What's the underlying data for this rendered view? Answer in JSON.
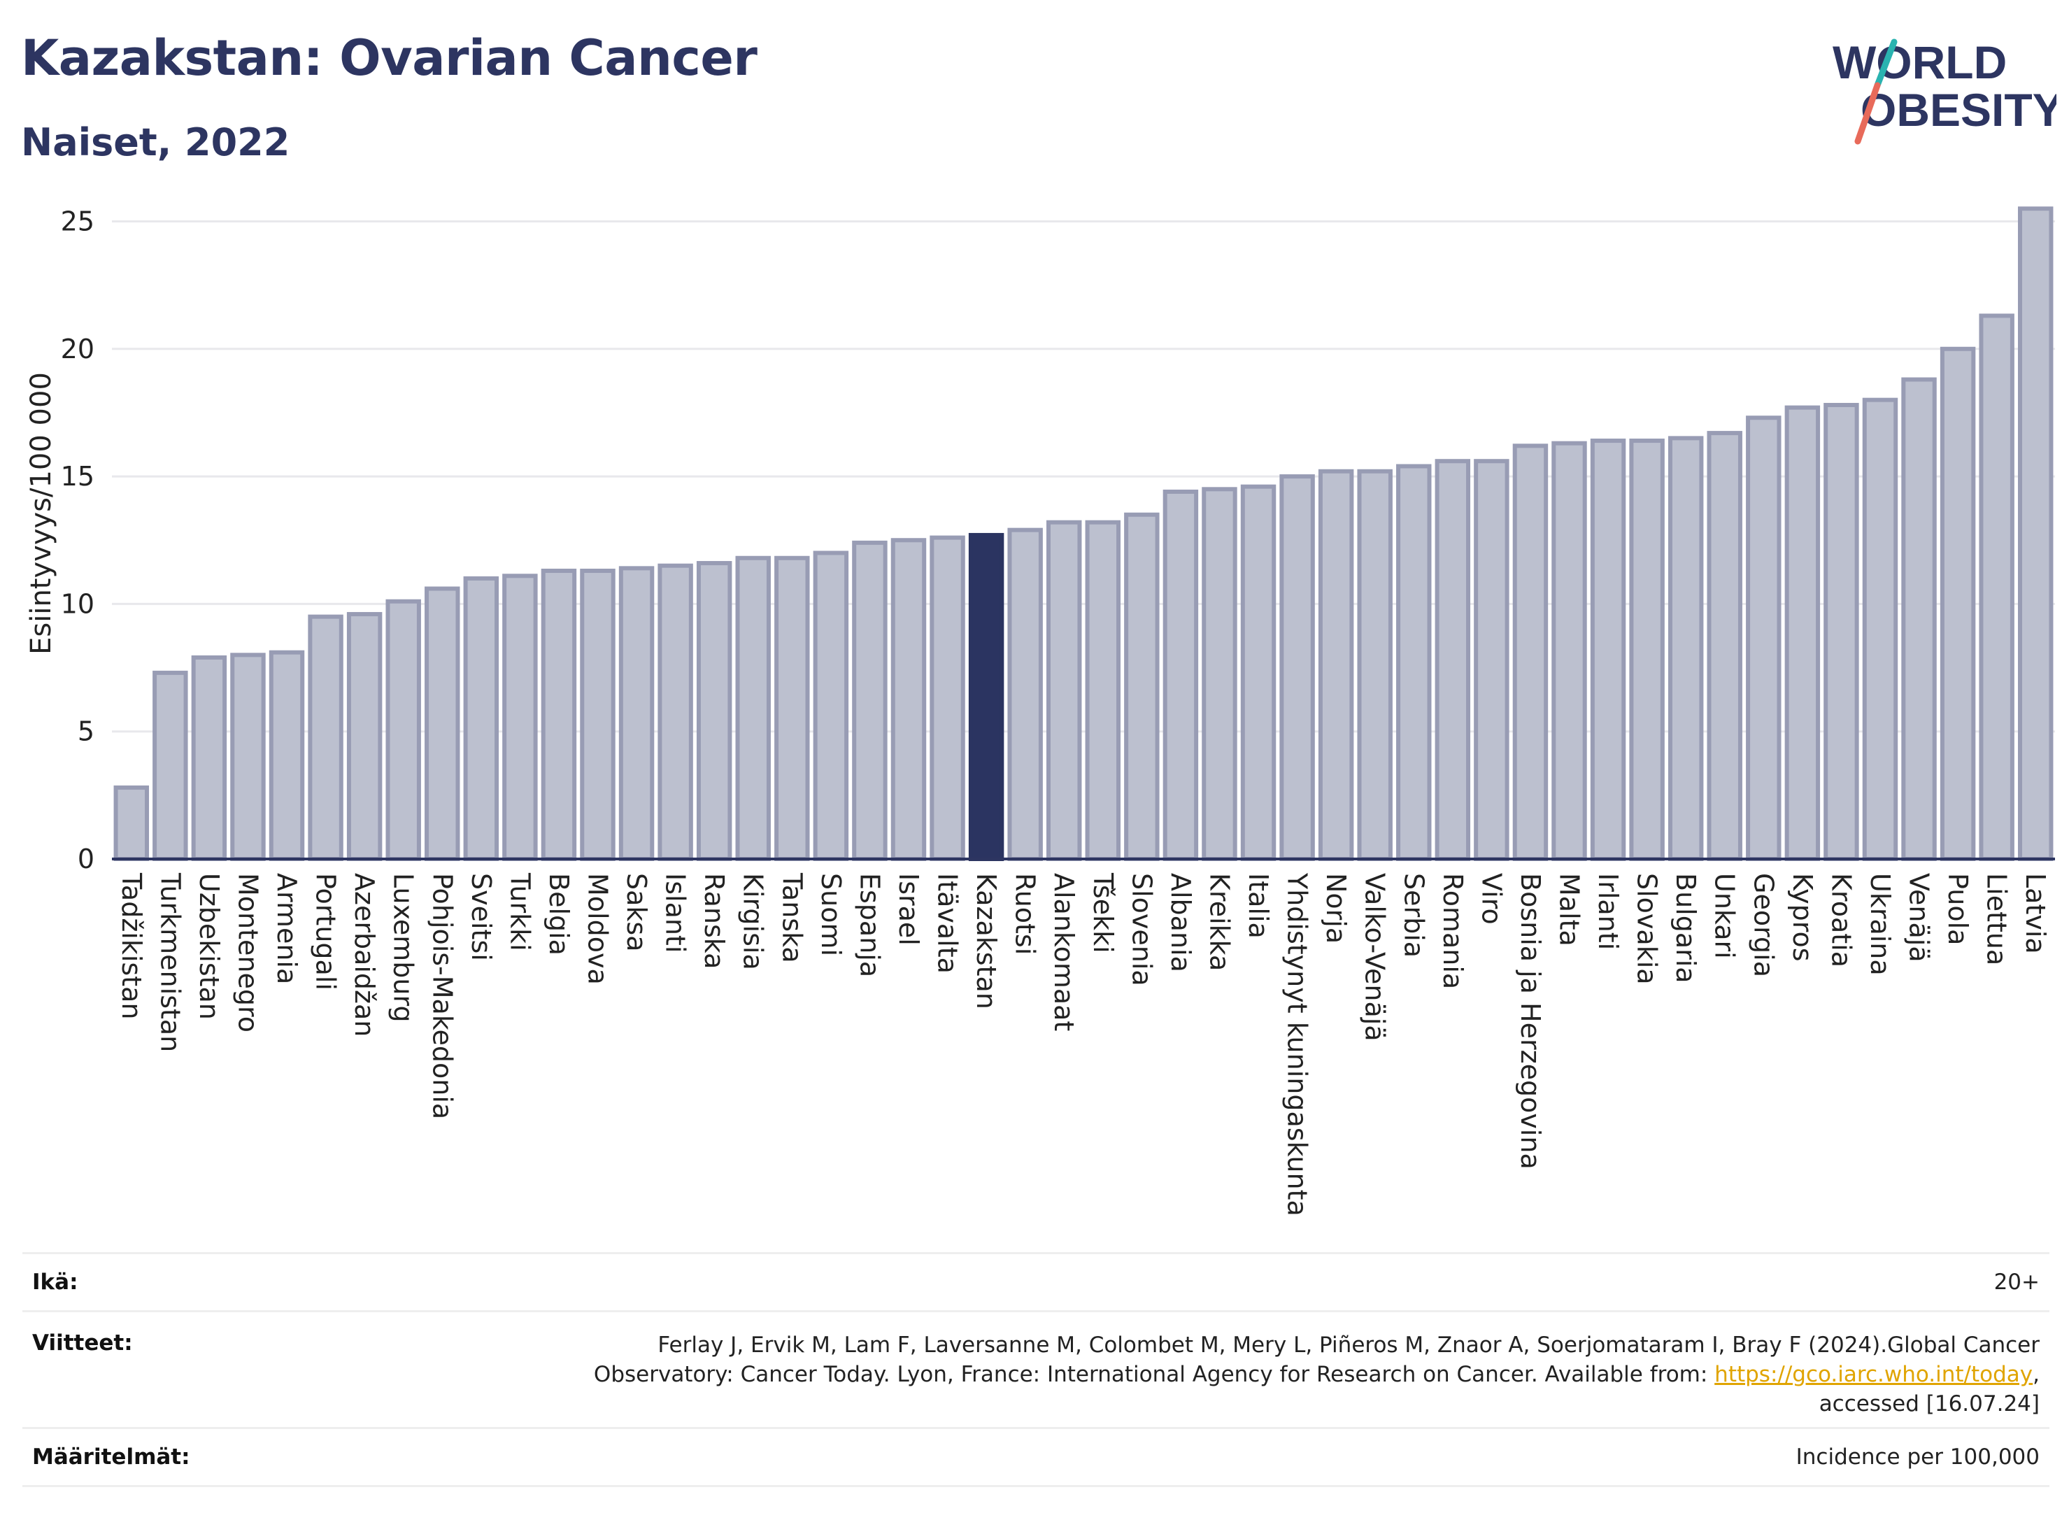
{
  "header": {
    "title": "Kazakstan: Ovarian Cancer",
    "subtitle": "Naiset, 2022"
  },
  "logo": {
    "line1": "WORLD",
    "line2": "OBESITY",
    "colors": {
      "text": "#2d3561",
      "slash_top": "#2ab3b0",
      "slash_bottom": "#e86a5a"
    }
  },
  "colors": {
    "bar_fill": "#bcc0cf",
    "bar_stroke": "#989cb4",
    "highlight": "#2b3461",
    "grid": "#e8e8ec",
    "axis": "#2d3561"
  },
  "chart_data": {
    "type": "bar",
    "ylabel": "Esiintyvyys/100 000",
    "ylim": [
      0,
      26
    ],
    "yticks": [
      0,
      5,
      10,
      15,
      20,
      25
    ],
    "grid": true,
    "highlight": "Kazakstan",
    "categories": [
      "Tadžikistan",
      "Turkmenistan",
      "Uzbekistan",
      "Montenegro",
      "Armenia",
      "Portugali",
      "Azerbaidžan",
      "Luxemburg",
      "Pohjois-Makedonia",
      "Sveitsi",
      "Turkki",
      "Belgia",
      "Moldova",
      "Saksa",
      "Islanti",
      "Ranska",
      "Kirgisia",
      "Tanska",
      "Suomi",
      "Espanja",
      "Israel",
      "Itävalta",
      "Kazakstan",
      "Ruotsi",
      "Alankomaat",
      "Tšekki",
      "Slovenia",
      "Albania",
      "Kreikka",
      "Italia",
      "Yhdistynyt kuningaskunta",
      "Norja",
      "Valko-Venäjä",
      "Serbia",
      "Romania",
      "Viro",
      "Bosnia ja Herzegovina",
      "Malta",
      "Irlanti",
      "Slovakia",
      "Bulgaria",
      "Unkari",
      "Georgia",
      "Kypros",
      "Kroatia",
      "Ukraina",
      "Venäjä",
      "Puola",
      "Liettua",
      "Latvia"
    ],
    "values": [
      2.8,
      7.3,
      7.9,
      8.0,
      8.1,
      9.5,
      9.6,
      10.1,
      10.6,
      11.0,
      11.1,
      11.3,
      11.3,
      11.4,
      11.5,
      11.6,
      11.8,
      11.8,
      12.0,
      12.4,
      12.5,
      12.6,
      12.7,
      12.9,
      13.2,
      13.2,
      13.5,
      14.4,
      14.5,
      14.6,
      15.0,
      15.2,
      15.2,
      15.4,
      15.6,
      15.6,
      16.2,
      16.3,
      16.4,
      16.4,
      16.5,
      16.7,
      17.3,
      17.7,
      17.8,
      18.0,
      18.8,
      20.0,
      21.3,
      25.5
    ]
  },
  "info": {
    "age_label": "Ikä:",
    "age_value": "20+",
    "refs_label": "Viitteet:",
    "refs_line1": "Ferlay J, Ervik M, Lam F, Laversanne M, Colombet M, Mery L, Piñeros M, Znaor A, Soerjomataram I, Bray F (2024).Global Cancer",
    "refs_line2_pre": "Observatory: Cancer Today. Lyon, France: International Agency for Research on Cancer. Available from: ",
    "refs_link": "https://gco.iarc.who.int/today",
    "refs_line2_post": ",",
    "refs_line3": "accessed [16.07.24]",
    "def_label": "Määritelmät:",
    "def_value": "Incidence per 100,000"
  }
}
